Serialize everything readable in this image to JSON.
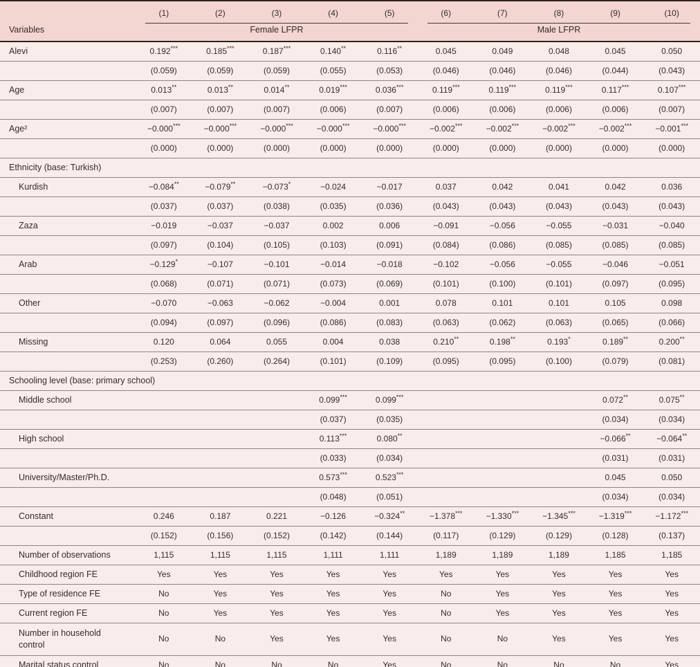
{
  "header": {
    "variables_label": "Variables",
    "col_numbers": [
      "(1)",
      "(2)",
      "(3)",
      "(4)",
      "(5)",
      "(6)",
      "(7)",
      "(8)",
      "(9)",
      "(10)"
    ],
    "groups": [
      {
        "label": "Female LFPR",
        "span": 5
      },
      {
        "label": "Male LFPR",
        "span": 5
      }
    ]
  },
  "colors": {
    "header_pink": "#f3d5d1",
    "row_pink": "#f9edeb",
    "rule_dark": "#2b2220",
    "rule_gray": "#8d8583",
    "text": "#352c29"
  },
  "rows": [
    {
      "label": "Alevi",
      "indent": 0,
      "type": "coef",
      "cells": [
        "0.192***",
        "0.185***",
        "0.187***",
        "0.140**",
        "0.116**",
        "0.045",
        "0.049",
        "0.048",
        "0.045",
        "0.050"
      ]
    },
    {
      "label": "",
      "indent": 0,
      "type": "se",
      "cells": [
        "(0.059)",
        "(0.059)",
        "(0.059)",
        "(0.055)",
        "(0.053)",
        "(0.046)",
        "(0.046)",
        "(0.046)",
        "(0.044)",
        "(0.043)"
      ]
    },
    {
      "label": "Age",
      "indent": 0,
      "type": "coef",
      "cells": [
        "0.013**",
        "0.013**",
        "0.014**",
        "0.019***",
        "0.036***",
        "0.119***",
        "0.119***",
        "0.119***",
        "0.117***",
        "0.107***"
      ]
    },
    {
      "label": "",
      "indent": 0,
      "type": "se",
      "cells": [
        "(0.007)",
        "(0.007)",
        "(0.007)",
        "(0.006)",
        "(0.007)",
        "(0.006)",
        "(0.006)",
        "(0.006)",
        "(0.006)",
        "(0.007)"
      ]
    },
    {
      "label": "Age²",
      "indent": 0,
      "type": "coef",
      "cells": [
        "−0.000***",
        "−0.000***",
        "−0.000***",
        "−0.000***",
        "−0.000***",
        "−0.002***",
        "−0.002***",
        "−0.002***",
        "−0.002***",
        "−0.001***"
      ]
    },
    {
      "label": "",
      "indent": 0,
      "type": "se",
      "cells": [
        "(0.000)",
        "(0.000)",
        "(0.000)",
        "(0.000)",
        "(0.000)",
        "(0.000)",
        "(0.000)",
        "(0.000)",
        "(0.000)",
        "(0.000)"
      ]
    },
    {
      "label": "Ethnicity (base: Turkish)",
      "indent": 0,
      "type": "section",
      "cells": []
    },
    {
      "label": "Kurdish",
      "indent": 1,
      "type": "coef",
      "cells": [
        "−0.084**",
        "−0.079**",
        "−0.073*",
        "−0.024",
        "−0.017",
        "0.037",
        "0.042",
        "0.041",
        "0.042",
        "0.036"
      ]
    },
    {
      "label": "",
      "indent": 0,
      "type": "se",
      "cells": [
        "(0.037)",
        "(0.037)",
        "(0.038)",
        "(0.035)",
        "(0.036)",
        "(0.043)",
        "(0.043)",
        "(0.043)",
        "(0.043)",
        "(0.043)"
      ]
    },
    {
      "label": "Zaza",
      "indent": 1,
      "type": "coef",
      "cells": [
        "−0.019",
        "−0.037",
        "−0.037",
        "0.002",
        "0.006",
        "−0.091",
        "−0.056",
        "−0.055",
        "−0.031",
        "−0.040"
      ]
    },
    {
      "label": "",
      "indent": 0,
      "type": "se",
      "cells": [
        "(0.097)",
        "(0.104)",
        "(0.105)",
        "(0.103)",
        "(0.091)",
        "(0.084)",
        "(0.086)",
        "(0.085)",
        "(0.085)",
        "(0.085)"
      ]
    },
    {
      "label": "Arab",
      "indent": 1,
      "type": "coef",
      "cells": [
        "−0.129*",
        "−0.107",
        "−0.101",
        "−0.014",
        "−0.018",
        "−0.102",
        "−0.056",
        "−0.055",
        "−0.046",
        "−0.051"
      ]
    },
    {
      "label": "",
      "indent": 0,
      "type": "se",
      "cells": [
        "(0.068)",
        "(0.071)",
        "(0.071)",
        "(0.073)",
        "(0.069)",
        "(0.101)",
        "(0.100)",
        "(0.101)",
        "(0.097)",
        "(0.095)"
      ]
    },
    {
      "label": "Other",
      "indent": 1,
      "type": "coef",
      "cells": [
        "−0.070",
        "−0.063",
        "−0.062",
        "−0.004",
        "0.001",
        "0.078",
        "0.101",
        "0.101",
        "0.105",
        "0.098"
      ]
    },
    {
      "label": "",
      "indent": 0,
      "type": "se",
      "cells": [
        "(0.094)",
        "(0.097)",
        "(0.096)",
        "(0.086)",
        "(0.083)",
        "(0.063)",
        "(0.062)",
        "(0.063)",
        "(0.065)",
        "(0.066)"
      ]
    },
    {
      "label": "Missing",
      "indent": 1,
      "type": "coef",
      "cells": [
        "0.120",
        "0.064",
        "0.055",
        "0.004",
        "0.038",
        "0.210**",
        "0.198**",
        "0.193*",
        "0.189**",
        "0.200**"
      ]
    },
    {
      "label": "",
      "indent": 0,
      "type": "se",
      "cells": [
        "(0.253)",
        "(0.260)",
        "(0.264)",
        "(0.101)",
        "(0.109)",
        "(0.095)",
        "(0.095)",
        "(0.100)",
        "(0.079)",
        "(0.081)"
      ]
    },
    {
      "label": "Schooling level (base: primary school)",
      "indent": 0,
      "type": "section",
      "cells": []
    },
    {
      "label": "Middle school",
      "indent": 1,
      "type": "coef",
      "cells": [
        "",
        "",
        "",
        "0.099***",
        "0.099***",
        "",
        "",
        "",
        "0.072**",
        "0.075**"
      ]
    },
    {
      "label": "",
      "indent": 0,
      "type": "se",
      "cells": [
        "",
        "",
        "",
        "(0.037)",
        "(0.035)",
        "",
        "",
        "",
        "(0.034)",
        "(0.034)"
      ]
    },
    {
      "label": "High school",
      "indent": 1,
      "type": "coef",
      "cells": [
        "",
        "",
        "",
        "0.113***",
        "0.080**",
        "",
        "",
        "",
        "−0.066**",
        "−0.064**"
      ]
    },
    {
      "label": "",
      "indent": 0,
      "type": "se",
      "cells": [
        "",
        "",
        "",
        "(0.033)",
        "(0.034)",
        "",
        "",
        "",
        "(0.031)",
        "(0.031)"
      ]
    },
    {
      "label": "University/Master/Ph.D.",
      "indent": 1,
      "type": "coef",
      "cells": [
        "",
        "",
        "",
        "0.573***",
        "0.523***",
        "",
        "",
        "",
        "0.045",
        "0.050"
      ]
    },
    {
      "label": "",
      "indent": 0,
      "type": "se",
      "cells": [
        "",
        "",
        "",
        "(0.048)",
        "(0.051)",
        "",
        "",
        "",
        "(0.034)",
        "(0.034)"
      ]
    },
    {
      "label": "Constant",
      "indent": 1,
      "type": "coef",
      "cells": [
        "0.246",
        "0.187",
        "0.221",
        "−0.126",
        "−0.324**",
        "−1.378***",
        "−1.330***",
        "−1.345***",
        "−1.319***",
        "−1.172***"
      ]
    },
    {
      "label": "",
      "indent": 0,
      "type": "se",
      "cells": [
        "(0.152)",
        "(0.156)",
        "(0.152)",
        "(0.142)",
        "(0.144)",
        "(0.117)",
        "(0.129)",
        "(0.129)",
        "(0.128)",
        "(0.137)"
      ]
    },
    {
      "label": "Number of observations",
      "indent": 1,
      "type": "info",
      "cells": [
        "1,115",
        "1,115",
        "1,115",
        "1,111",
        "1,111",
        "1,189",
        "1,189",
        "1,189",
        "1,185",
        "1,185"
      ]
    },
    {
      "label": "Childhood region FE",
      "indent": 1,
      "type": "info",
      "cells": [
        "Yes",
        "Yes",
        "Yes",
        "Yes",
        "Yes",
        "Yes",
        "Yes",
        "Yes",
        "Yes",
        "Yes"
      ]
    },
    {
      "label": "Type of residence FE",
      "indent": 1,
      "type": "info",
      "cells": [
        "No",
        "Yes",
        "Yes",
        "Yes",
        "Yes",
        "No",
        "Yes",
        "Yes",
        "Yes",
        "Yes"
      ]
    },
    {
      "label": "Current region FE",
      "indent": 1,
      "type": "info",
      "cells": [
        "No",
        "Yes",
        "Yes",
        "Yes",
        "Yes",
        "No",
        "Yes",
        "Yes",
        "Yes",
        "Yes"
      ]
    },
    {
      "label": "Number in household control",
      "indent": 1,
      "type": "info",
      "tall": true,
      "cells": [
        "No",
        "No",
        "Yes",
        "Yes",
        "Yes",
        "No",
        "No",
        "Yes",
        "Yes",
        "Yes"
      ]
    },
    {
      "label": "Marital status control",
      "indent": 1,
      "type": "info",
      "cells": [
        "No",
        "No",
        "No",
        "No",
        "Yes",
        "No",
        "No",
        "No",
        "No",
        "Yes"
      ]
    }
  ]
}
